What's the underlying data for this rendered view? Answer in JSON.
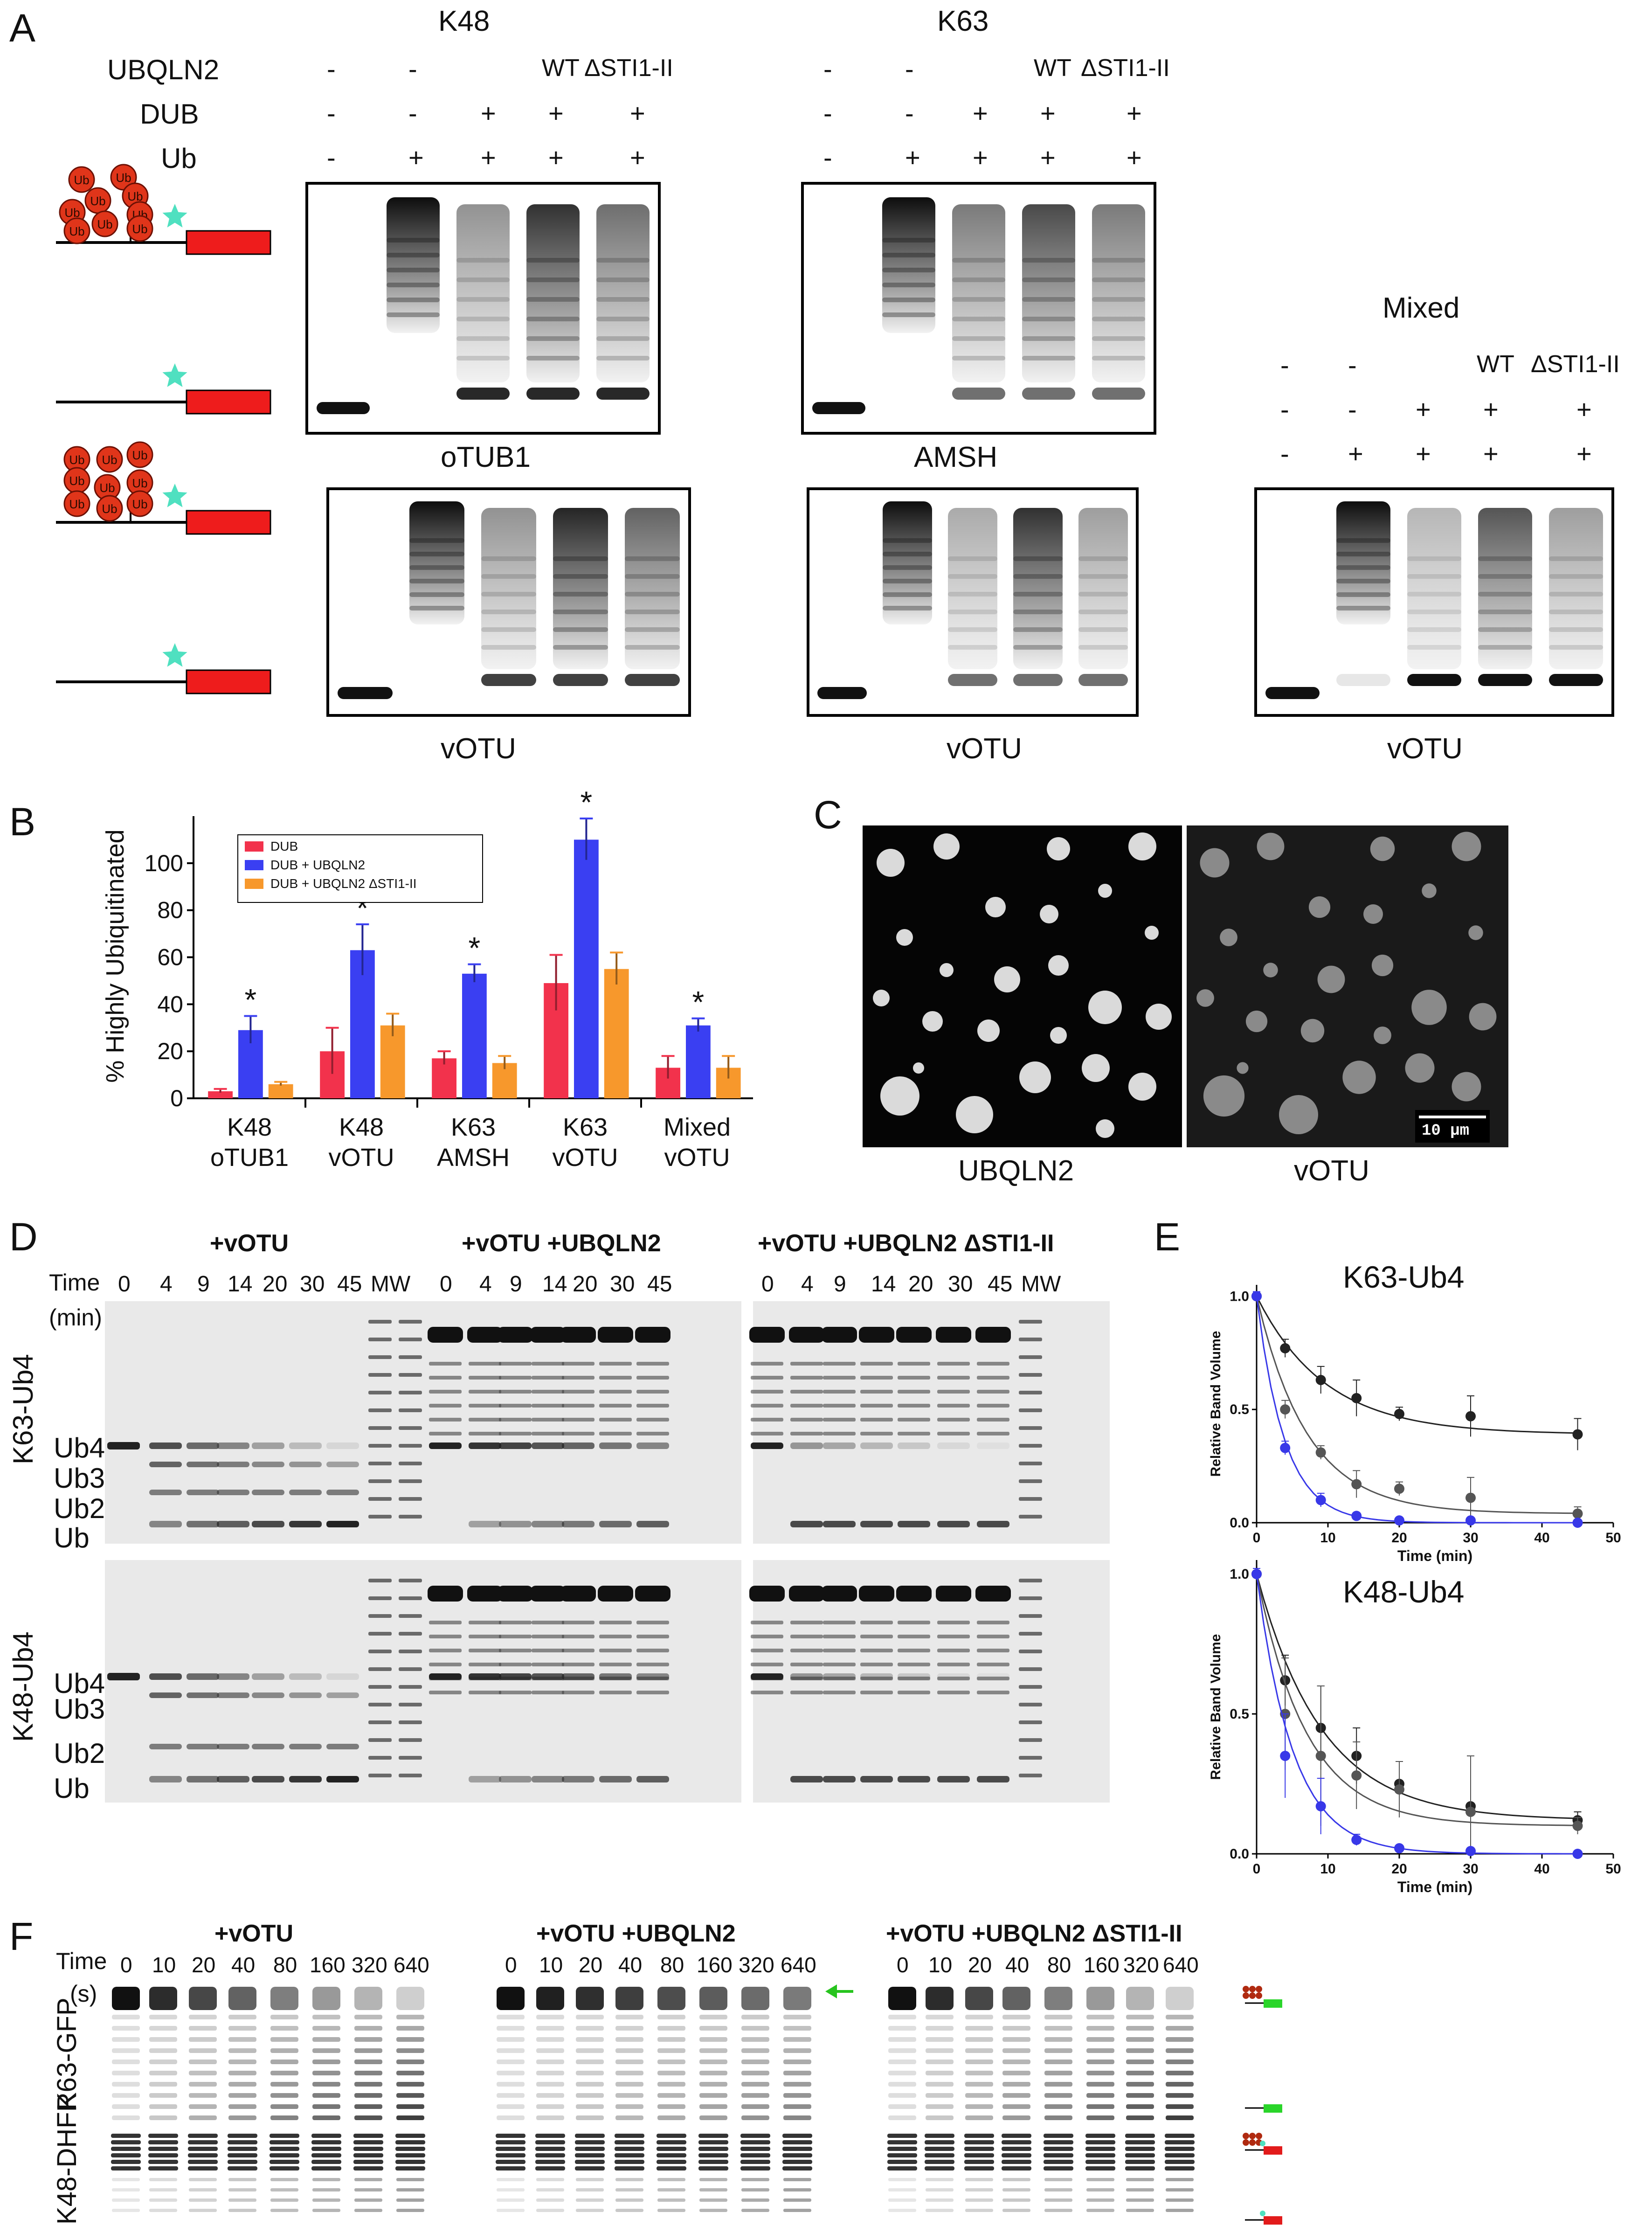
{
  "panels": {
    "A": "A",
    "B": "B",
    "C": "C",
    "D": "D",
    "E": "E",
    "F": "F"
  },
  "panelA": {
    "k48": "K48",
    "k63": "K63",
    "mixed": "Mixed",
    "row_labels": [
      "UBQLN2",
      "DUB",
      "Ub"
    ],
    "ubqln2_marks": [
      "-",
      "-",
      "",
      "WT",
      "ΔSTI1-II"
    ],
    "dub_marks": [
      "-",
      "-",
      "+",
      "+",
      "+"
    ],
    "ub_marks": [
      "-",
      "+",
      "+",
      "+",
      "+"
    ],
    "ub_bead": "Ub",
    "dub_names": {
      "k48_top": "oTUB1",
      "k63_top": "AMSH",
      "k48_bottom": "vOTU",
      "k63_bottom": "vOTU",
      "mixed_bottom": "vOTU"
    }
  },
  "chart_data": {
    "type": "bar",
    "categories": [
      "K48\noTUB1",
      "K48\nvOTU",
      "K63\nAMSH",
      "K63\nvOTU",
      "Mixed\nvOTU"
    ],
    "category_lines": [
      [
        "K48",
        "oTUB1"
      ],
      [
        "K48",
        "vOTU"
      ],
      [
        "K63",
        "AMSH"
      ],
      [
        "K63",
        "vOTU"
      ],
      [
        "Mixed",
        "vOTU"
      ]
    ],
    "ylabel": "% Highly Ubiquitinated",
    "ylim": [
      0,
      120
    ],
    "yticks": [
      "0",
      "20",
      "40",
      "60",
      "80",
      "100"
    ],
    "series": [
      {
        "name": "DUB",
        "color": "#f2324c",
        "values": [
          3,
          20,
          17,
          49,
          13
        ],
        "errors": [
          1,
          10,
          3,
          12,
          5
        ]
      },
      {
        "name": "DUB + UBQLN2",
        "color": "#3a3ff2",
        "values": [
          29,
          63,
          53,
          110,
          31
        ],
        "errors": [
          6,
          11,
          4,
          9,
          3
        ]
      },
      {
        "name": "DUB + UBQLN2      ΔSTI1-II",
        "color": "#f7982c",
        "values": [
          6,
          31,
          15,
          55,
          13
        ],
        "errors": [
          1,
          5,
          3,
          7,
          5
        ]
      }
    ],
    "significance": [
      "*",
      "*",
      "*",
      "*",
      "*"
    ],
    "legend_position": "top-left"
  },
  "panelC": {
    "left_label": "UBQLN2",
    "right_label": "vOTU",
    "scalebar": "10 μm"
  },
  "panelD": {
    "headers": [
      "+vOTU",
      "+vOTU +UBQLN2",
      "+vOTU +UBQLN2 ΔSTI1-II"
    ],
    "header_colors": [
      "#3d4a4a",
      "#111111",
      "#3527c8"
    ],
    "time_label": "Time",
    "time_unit": "(min)",
    "times": [
      "0",
      "4",
      "9",
      "14",
      "20",
      "30",
      "45"
    ],
    "mw": "MW",
    "row_labels": [
      "K63-Ub4",
      "K48-Ub4"
    ],
    "band_labels": [
      "Ub4",
      "Ub3",
      "Ub2",
      "Ub"
    ]
  },
  "panelE": {
    "titles": [
      "K63-Ub4",
      "K48-Ub4"
    ],
    "ylabel": "Relative Band Volume",
    "xlabel": "Time (min)",
    "xticks": [
      "0",
      "10",
      "20",
      "30",
      "40",
      "50"
    ],
    "yticks": [
      "0.0",
      "0.5",
      "1.0"
    ],
    "curves": [
      {
        "series": [
          {
            "color": "#222222",
            "x": [
              0,
              4,
              9,
              14,
              20,
              30,
              45
            ],
            "y": [
              1.0,
              0.77,
              0.63,
              0.55,
              0.48,
              0.47,
              0.39
            ],
            "err": [
              0.02,
              0.04,
              0.06,
              0.08,
              0.03,
              0.09,
              0.07
            ]
          },
          {
            "color": "#555555",
            "x": [
              0,
              4,
              9,
              14,
              20,
              30,
              45
            ],
            "y": [
              1.0,
              0.5,
              0.31,
              0.17,
              0.15,
              0.11,
              0.04
            ],
            "err": [
              0.02,
              0.04,
              0.03,
              0.06,
              0.03,
              0.09,
              0.03
            ]
          },
          {
            "color": "#3838e8",
            "x": [
              0,
              4,
              9,
              14,
              20,
              30,
              45
            ],
            "y": [
              1.0,
              0.33,
              0.1,
              0.03,
              0.01,
              0.01,
              0.0
            ],
            "err": [
              0.02,
              0.03,
              0.03,
              0.01,
              0.01,
              0.01,
              0.0
            ]
          }
        ]
      },
      {
        "series": [
          {
            "color": "#222222",
            "x": [
              0,
              4,
              9,
              14,
              20,
              30,
              45
            ],
            "y": [
              1.0,
              0.62,
              0.45,
              0.35,
              0.25,
              0.17,
              0.12
            ],
            "err": [
              0.02,
              0.09,
              0.15,
              0.1,
              0.08,
              0.18,
              0.03
            ]
          },
          {
            "color": "#555555",
            "x": [
              0,
              4,
              9,
              14,
              20,
              30,
              45
            ],
            "y": [
              1.0,
              0.5,
              0.35,
              0.28,
              0.23,
              0.15,
              0.1
            ],
            "err": [
              0.02,
              0.2,
              0.25,
              0.12,
              0.1,
              0.2,
              0.03
            ]
          },
          {
            "color": "#3838e8",
            "x": [
              0,
              4,
              9,
              14,
              20,
              30,
              45
            ],
            "y": [
              1.0,
              0.35,
              0.17,
              0.05,
              0.02,
              0.01,
              0.0
            ],
            "err": [
              0.02,
              0.15,
              0.1,
              0.02,
              0.01,
              0.01,
              0.0
            ]
          }
        ]
      }
    ]
  },
  "panelF": {
    "headers": [
      "+vOTU",
      "+vOTU +UBQLN2",
      "+vOTU +UBQLN2 ΔSTI1-II"
    ],
    "header_colors": [
      "#3d4a4a",
      "#111111",
      "#3527c8"
    ],
    "time_label": "Time",
    "time_unit": "(s)",
    "times": [
      "0",
      "10",
      "20",
      "40",
      "80",
      "160",
      "320",
      "640"
    ],
    "row_labels": [
      "K63-GFP",
      "K48-DHFR"
    ]
  }
}
